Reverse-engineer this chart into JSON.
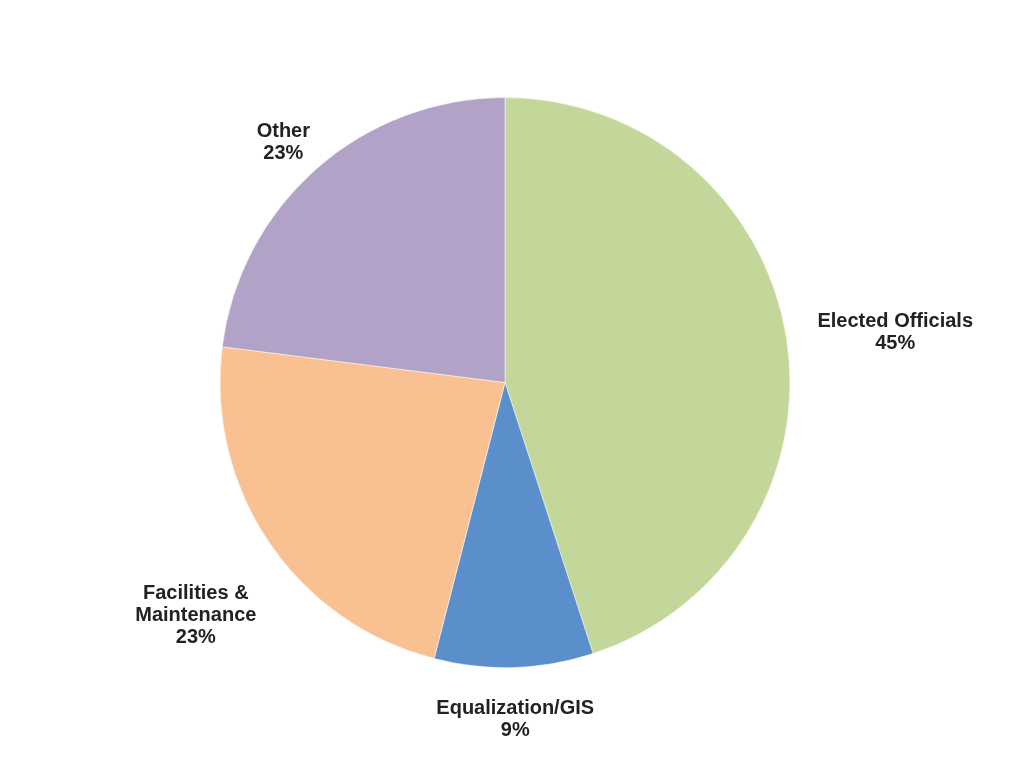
{
  "chart_data": {
    "type": "pie",
    "categories": [
      "Elected Officials",
      "Equalization/GIS",
      "Facilities & Maintenance",
      "Other"
    ],
    "values": [
      45,
      9,
      23,
      23
    ],
    "value_labels": [
      "45%",
      "9%",
      "23%",
      "23%"
    ],
    "colors": [
      "#c4d79b",
      "#5b8fcb",
      "#f9c191",
      "#b2a2c7"
    ]
  }
}
